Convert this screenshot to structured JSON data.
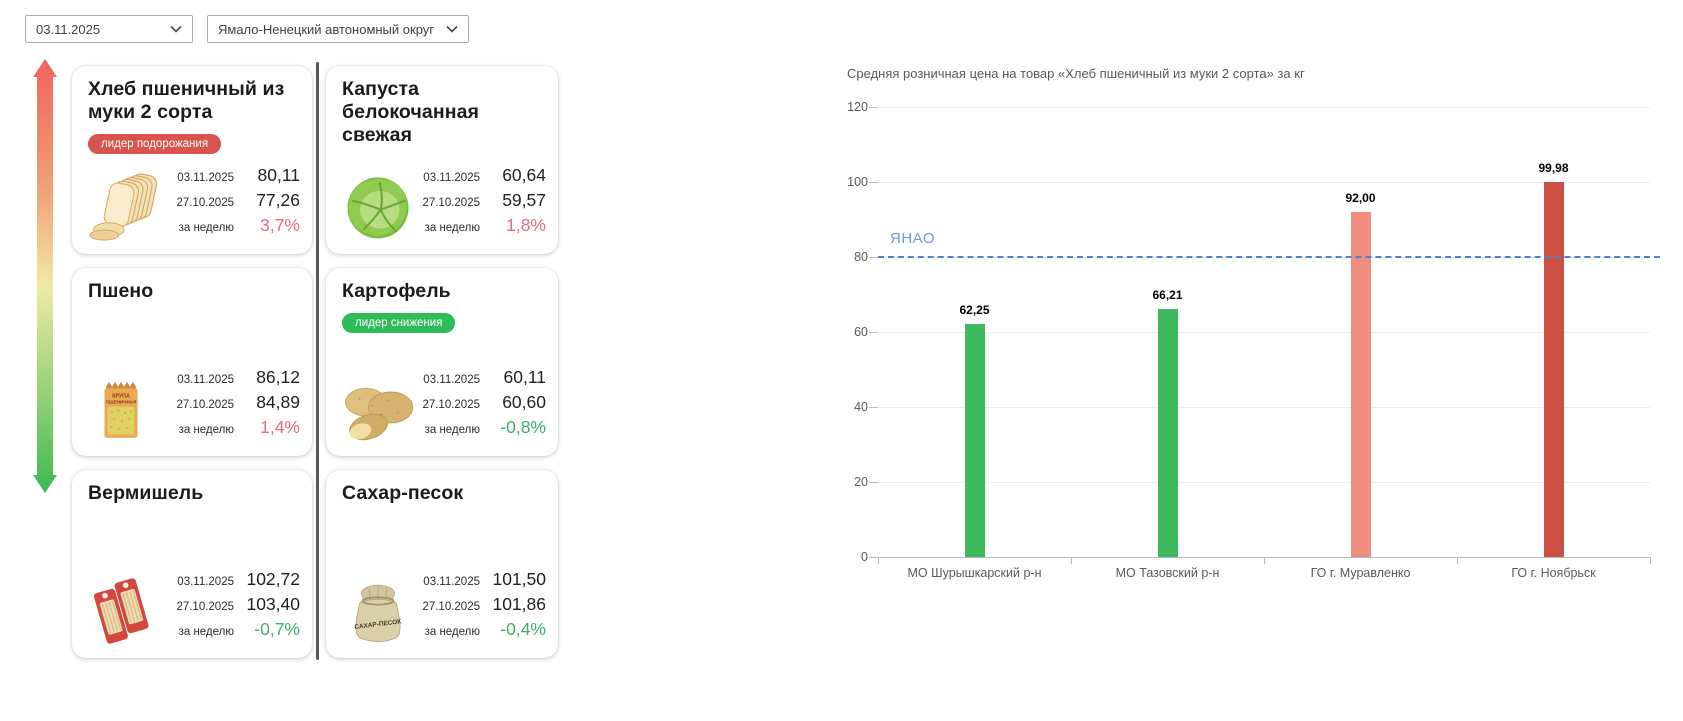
{
  "filters": {
    "date": {
      "value": "03.11.2025"
    },
    "region": {
      "value": "Ямало-Ненецкий автономный округ"
    }
  },
  "colors": {
    "badge_up": "#d9534f",
    "badge_down": "#2ebc5a",
    "trend_up": "#e66a7d",
    "trend_down": "#3cae68",
    "arrow_top": "#f2615c",
    "arrow_middle": "#f1e9a2",
    "arrow_bottom": "#3cb854"
  },
  "products": [
    {
      "title": "Хлеб пшеничный из муки 2 сорта",
      "badge": {
        "label": "лидер подорожания",
        "type": "up"
      },
      "image": "bread",
      "date1": "03.11.2025",
      "price1": "80,11",
      "date2": "27.10.2025",
      "price2": "77,26",
      "week_label": "за неделю",
      "week_value": "3,7%",
      "trend": "up"
    },
    {
      "title": "Капуста белокочанная свежая",
      "image": "cabbage",
      "date1": "03.11.2025",
      "price1": "60,64",
      "date2": "27.10.2025",
      "price2": "59,57",
      "week_label": "за неделю",
      "week_value": "1,8%",
      "trend": "up"
    },
    {
      "title": "Пшено",
      "image": "millet",
      "image_caption1": "КРУПА",
      "image_caption2": "ПШЕНИЧНАЯ",
      "date1": "03.11.2025",
      "price1": "86,12",
      "date2": "27.10.2025",
      "price2": "84,89",
      "week_label": "за неделю",
      "week_value": "1,4%",
      "trend": "up"
    },
    {
      "title": "Картофель",
      "badge": {
        "label": "лидер снижения",
        "type": "down"
      },
      "image": "potato",
      "date1": "03.11.2025",
      "price1": "60,11",
      "date2": "27.10.2025",
      "price2": "60,60",
      "week_label": "за неделю",
      "week_value": "-0,8%",
      "trend": "down"
    },
    {
      "title": "Вермишель",
      "image": "vermicelli",
      "date1": "03.11.2025",
      "price1": "102,72",
      "date2": "27.10.2025",
      "price2": "103,40",
      "week_label": "за неделю",
      "week_value": "-0,7%",
      "trend": "down"
    },
    {
      "title": "Сахар-песок",
      "image": "sugar",
      "image_caption": "САХАР-ПЕСОК",
      "date1": "03.11.2025",
      "price1": "101,50",
      "date2": "27.10.2025",
      "price2": "101,86",
      "week_label": "за неделю",
      "week_value": "-0,4%",
      "trend": "down"
    }
  ],
  "chart_data": {
    "type": "bar",
    "title": "Средняя розничная цена на товар «Хлеб пшеничный из муки 2 сорта» за кг",
    "categories": [
      "МО Шурышкарский р-н",
      "МО Тазовский р-н",
      "ГО г. Муравленко",
      "ГО г. Ноябрьск"
    ],
    "values": [
      62.25,
      66.21,
      92.0,
      99.98
    ],
    "value_labels": [
      "62,25",
      "66,21",
      "92,00",
      "99,98"
    ],
    "bar_colors": [
      "#3eba5e",
      "#3eba5e",
      "#ef8e80",
      "#cc4f44"
    ],
    "reference_line": {
      "label": "ЯНАО",
      "value": 80,
      "color": "#4b7fd6",
      "label_color": "#7197dc"
    },
    "xlabel": "",
    "ylabel": "",
    "ylim": [
      0,
      120
    ],
    "yticks": [
      0,
      20,
      40,
      60,
      80,
      100,
      120
    ],
    "grid": true,
    "legend": "none"
  }
}
